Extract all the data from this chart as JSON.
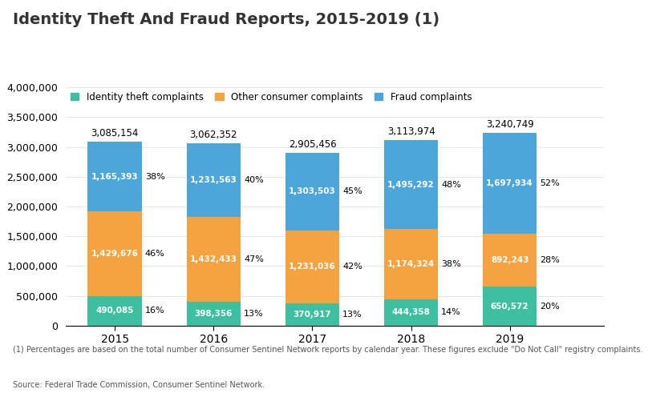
{
  "title": "Identity Theft And Fraud Reports, 2015-2019 (1)",
  "years": [
    "2015",
    "2016",
    "2017",
    "2018",
    "2019"
  ],
  "identity_theft": [
    490085,
    398356,
    370917,
    444358,
    650572
  ],
  "other_consumer": [
    1429676,
    1432433,
    1231036,
    1174324,
    892243
  ],
  "fraud": [
    1165393,
    1231563,
    1303503,
    1495292,
    1697934
  ],
  "totals": [
    3085154,
    3062352,
    2905456,
    3113974,
    3240749
  ],
  "identity_theft_pct": [
    "16%",
    "13%",
    "13%",
    "14%",
    "20%"
  ],
  "other_consumer_pct": [
    "46%",
    "47%",
    "42%",
    "38%",
    "28%"
  ],
  "fraud_pct": [
    "38%",
    "40%",
    "45%",
    "48%",
    "52%"
  ],
  "color_identity": "#3dbfa0",
  "color_other": "#f5a340",
  "color_fraud": "#4da6d9",
  "footnote": "(1) Percentages are based on the total number of Consumer Sentinel Network reports by calendar year. These figures exclude \"Do Not Call\" registry complaints.",
  "source": "Source: Federal Trade Commission, Consumer Sentinel Network.",
  "background_color": "#ffffff",
  "ylim": [
    0,
    4000000
  ],
  "yticks": [
    0,
    500000,
    1000000,
    1500000,
    2000000,
    2500000,
    3000000,
    3500000,
    4000000
  ]
}
